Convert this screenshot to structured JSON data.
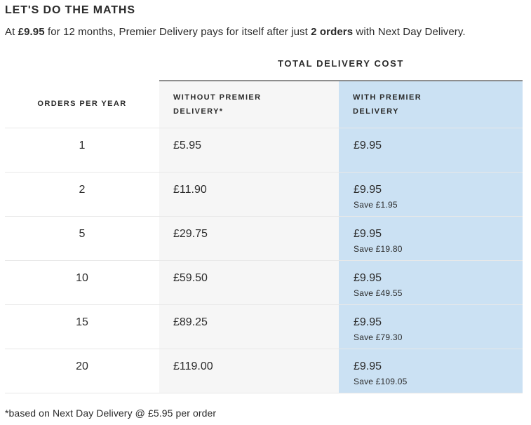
{
  "title": "LET'S DO THE MATHS",
  "intro": {
    "segments": [
      {
        "text": "At ",
        "bold": false
      },
      {
        "text": "£9.95",
        "bold": true
      },
      {
        "text": " for 12 months, Premier Delivery pays for itself after just ",
        "bold": false
      },
      {
        "text": "2 orders",
        "bold": true
      },
      {
        "text": " with Next Day Delivery.",
        "bold": false
      }
    ]
  },
  "table": {
    "section_title": "TOTAL DELIVERY COST",
    "columns": [
      {
        "id": "orders",
        "label": "ORDERS PER YEAR"
      },
      {
        "id": "without_premier",
        "line1": "WITHOUT PREMIER",
        "line2": "DELIVERY*"
      },
      {
        "id": "with_premier",
        "line1": "WITH PREMIER",
        "line2": "DELIVERY"
      }
    ],
    "rows": [
      {
        "orders": "1",
        "without": "£5.95",
        "with": "£9.95",
        "save": ""
      },
      {
        "orders": "2",
        "without": "£11.90",
        "with": "£9.95",
        "save": "Save £1.95"
      },
      {
        "orders": "5",
        "without": "£29.75",
        "with": "£9.95",
        "save": "Save £19.80"
      },
      {
        "orders": "10",
        "without": "£59.50",
        "with": "£9.95",
        "save": "Save £49.55"
      },
      {
        "orders": "15",
        "without": "£89.25",
        "with": "£9.95",
        "save": "Save £79.30"
      },
      {
        "orders": "20",
        "without": "£119.00",
        "with": "£9.95",
        "save": "Save £109.05"
      }
    ]
  },
  "footnote": "*based on Next Day Delivery @ £5.95 per order",
  "colors": {
    "text": "#2b2b2b",
    "without_column_bg": "#f6f6f6",
    "with_column_bg": "#cbe1f3",
    "row_divider": "#e8e8e8",
    "header_top_border": "#8e8e8e"
  }
}
